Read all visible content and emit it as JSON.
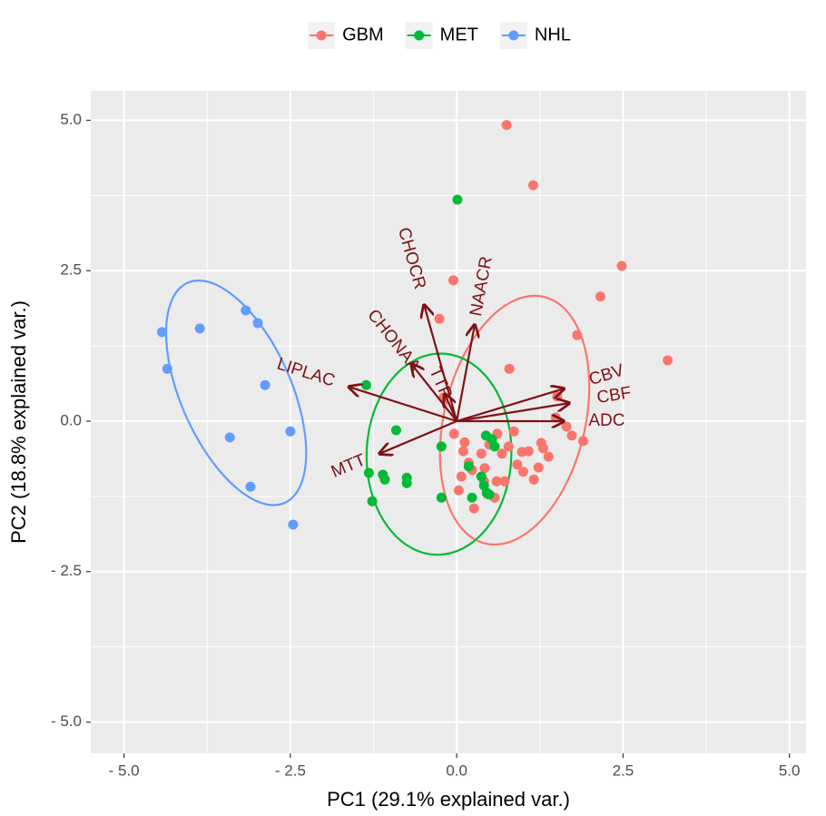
{
  "chart_data": {
    "type": "scatter",
    "x_label": "PC1 (29.1% explained var.)",
    "y_label": "PC2 (18.8% explained var.)",
    "xlim": [
      -5.5,
      5.25
    ],
    "ylim": [
      -5.52,
      5.49
    ],
    "xticks": [
      {
        "value": -5,
        "label": "- 5.0"
      },
      {
        "value": -2.5,
        "label": "- 2.5"
      },
      {
        "value": 0,
        "label": "0.0"
      },
      {
        "value": 2.5,
        "label": "2.5"
      },
      {
        "value": 5,
        "label": "5.0"
      }
    ],
    "yticks": [
      {
        "value": -5,
        "label": "- 5.0"
      },
      {
        "value": -2.5,
        "label": "- 2.5"
      },
      {
        "value": 0,
        "label": "0.0"
      },
      {
        "value": 2.5,
        "label": "2.5"
      },
      {
        "value": 5,
        "label": "5.0"
      }
    ],
    "grid": true,
    "legend_position": "top",
    "ellipse": true,
    "arrow_color": "#7f1116",
    "series": [
      {
        "name": "GBM",
        "color": "#F8766D",
        "x": [
          0.75,
          1.15,
          2.48,
          2.16,
          -0.05,
          -0.26,
          1.81,
          3.17,
          0.79,
          -0.2,
          1.51,
          1.49,
          1.65,
          1.73,
          1.9,
          0.86,
          0.61,
          0.49,
          -0.04,
          0.12,
          0.37,
          0.18,
          0.68,
          0.78,
          0.98,
          1.08,
          1.27,
          1.3,
          1.0,
          1.23,
          1.38,
          0.07,
          0.03,
          0.41,
          0.6,
          0.26,
          0.23,
          0.46,
          0.72,
          0.1,
          1.16,
          0.42,
          0.57,
          0.91
        ],
        "y": [
          4.92,
          3.92,
          2.58,
          2.07,
          2.34,
          1.7,
          1.43,
          1.01,
          0.87,
          0.39,
          0.41,
          0.06,
          -0.09,
          -0.24,
          -0.33,
          -0.17,
          -0.21,
          -0.39,
          -0.21,
          -0.35,
          -0.54,
          -0.69,
          -0.54,
          -0.42,
          -0.51,
          -0.5,
          -0.36,
          -0.45,
          -0.84,
          -0.77,
          -0.59,
          -0.92,
          -1.15,
          -1.0,
          -1.0,
          -1.45,
          -0.81,
          -1.21,
          -1.0,
          -0.5,
          -0.97,
          -0.78,
          -1.27,
          -0.72
        ]
      },
      {
        "name": "MET",
        "color": "#00BA38",
        "x": [
          0.01,
          -1.36,
          -0.91,
          -1.32,
          -1.11,
          -1.08,
          -0.75,
          -0.75,
          -1.27,
          -0.23,
          -0.23,
          0.23,
          0.37,
          0.41,
          0.44,
          0.53,
          0.57,
          0.45,
          0.49,
          0.18
        ],
        "y": [
          3.68,
          0.6,
          -0.15,
          -0.86,
          -0.89,
          -0.97,
          -0.94,
          -1.03,
          -1.33,
          -0.42,
          -1.27,
          -1.27,
          -0.92,
          -1.07,
          -0.24,
          -0.3,
          -0.42,
          -1.19,
          -1.22,
          -0.75
        ]
      },
      {
        "name": "NHL",
        "color": "#619CFF",
        "x": [
          -4.43,
          -3.86,
          -3.17,
          -2.99,
          -4.35,
          -2.88,
          -3.41,
          -2.5,
          -3.1,
          -2.46
        ],
        "y": [
          1.48,
          1.54,
          1.84,
          1.63,
          0.87,
          0.6,
          -0.27,
          -0.17,
          -1.09,
          -1.72
        ]
      }
    ],
    "variables": [
      {
        "name": "CBV",
        "x": 1.61,
        "y": 0.54
      },
      {
        "name": "CBF",
        "x": 1.69,
        "y": 0.3
      },
      {
        "name": "ADC",
        "x": 1.61,
        "y": 0.0
      },
      {
        "name": "MTT",
        "x": -1.16,
        "y": -0.54
      },
      {
        "name": "LIPLAC",
        "x": -1.62,
        "y": 0.57
      },
      {
        "name": "CHONAA",
        "x": -0.68,
        "y": 0.95
      },
      {
        "name": "CHOCR",
        "x": -0.49,
        "y": 1.93
      },
      {
        "name": "NAACR",
        "x": 0.27,
        "y": 1.6
      },
      {
        "name": "TTP",
        "x": -0.18,
        "y": 0.45
      }
    ]
  }
}
